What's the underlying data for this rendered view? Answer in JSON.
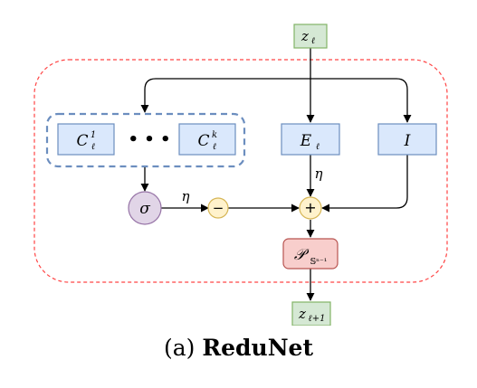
{
  "diagram": {
    "title": "ReduNet",
    "caption_prefix": "(a)",
    "nodes": {
      "z_in": {
        "main": "z",
        "sub": "ℓ"
      },
      "c1": {
        "main": "C",
        "sub": "ℓ",
        "sup": "1"
      },
      "dots": {
        "text": "• • •"
      },
      "ck": {
        "main": "C",
        "sub": "ℓ",
        "sup": "k"
      },
      "e": {
        "main": "E",
        "sub": "ℓ"
      },
      "i": {
        "main": "I"
      },
      "sigma": {
        "text": "σ"
      },
      "minus": {
        "text": "−"
      },
      "plus": {
        "text": "+"
      },
      "proj": {
        "main": "𝒫",
        "sub": "𝕊ⁿ⁻¹"
      },
      "z_out": {
        "main": "z",
        "sub": "ℓ+1"
      }
    },
    "edge_labels": {
      "eta_e": "η",
      "eta_sigma": "η"
    },
    "colors": {
      "blue_fill": "#dae8fc",
      "blue_stroke": "#6c8ebf",
      "green_fill": "#d5e8d4",
      "green_stroke": "#82b366",
      "purple_fill": "#e1d5e7",
      "purple_stroke": "#9673a6",
      "yellow_fill": "#fff2cc",
      "yellow_stroke": "#d6b656",
      "red_fill": "#f8cecc",
      "red_stroke": "#b85450",
      "outer_dash": "#ff4444",
      "group_dash": "#6c8ebf"
    }
  }
}
